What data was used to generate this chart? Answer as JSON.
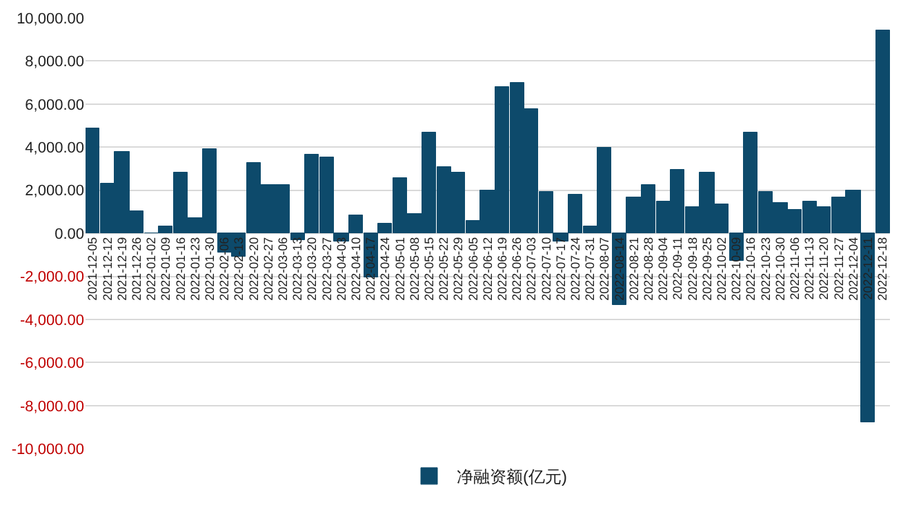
{
  "chart_data": {
    "type": "bar",
    "categories": [
      "2021-12-05",
      "2021-12-12",
      "2021-12-19",
      "2021-12-26",
      "2022-01-02",
      "2022-01-09",
      "2022-01-16",
      "2022-01-23",
      "2022-01-30",
      "2022-02-06",
      "2022-02-13",
      "2022-02-20",
      "2022-02-27",
      "2022-03-06",
      "2022-03-13",
      "2022-03-20",
      "2022-03-27",
      "2022-04-03",
      "2022-04-10",
      "2022-04-17",
      "2022-04-24",
      "2022-05-01",
      "2022-05-08",
      "2022-05-15",
      "2022-05-22",
      "2022-05-29",
      "2022-06-05",
      "2022-06-12",
      "2022-06-19",
      "2022-06-26",
      "2022-07-03",
      "2022-07-10",
      "2022-07-17",
      "2022-07-24",
      "2022-07-31",
      "2022-08-07",
      "2022-08-14",
      "2022-08-21",
      "2022-08-28",
      "2022-09-04",
      "2022-09-11",
      "2022-09-18",
      "2022-09-25",
      "2022-10-02",
      "2022-10-09",
      "2022-10-16",
      "2022-10-23",
      "2022-10-30",
      "2022-11-06",
      "2022-11-13",
      "2022-11-20",
      "2022-11-27",
      "2022-12-04",
      "2022-12-11",
      "2022-12-18"
    ],
    "series": [
      {
        "name": "净融资额(亿元)",
        "color": "#0d4a6b",
        "values": [
          4900,
          2300,
          3800,
          1000,
          0,
          300,
          2800,
          700,
          3900,
          -900,
          -1100,
          3300,
          2250,
          2250,
          -300,
          3650,
          3500,
          -350,
          850,
          -2050,
          450,
          2550,
          900,
          4650,
          3100,
          2850,
          550,
          2000,
          6800,
          7000,
          5750,
          1950,
          -350,
          1800,
          300,
          3950,
          -3350,
          1700,
          2250,
          1450,
          2950,
          1250,
          2800,
          1350,
          -1250,
          4650,
          1950,
          1400,
          1100,
          1450,
          1200,
          1650,
          2000,
          -8750,
          9400
        ]
      }
    ],
    "ylim": [
      -10000,
      10000
    ],
    "yticks": [
      {
        "value": -10000,
        "label": "-10,000.00"
      },
      {
        "value": -8000,
        "label": "-8,000.00"
      },
      {
        "value": -6000,
        "label": "-6,000.00"
      },
      {
        "value": -4000,
        "label": "-4,000.00"
      },
      {
        "value": -2000,
        "label": "-2,000.00"
      },
      {
        "value": 0,
        "label": "0.00"
      },
      {
        "value": 2000,
        "label": "2,000.00"
      },
      {
        "value": 4000,
        "label": "4,000.00"
      },
      {
        "value": 6000,
        "label": "6,000.00"
      },
      {
        "value": 8000,
        "label": "8,000.00"
      },
      {
        "value": 10000,
        "label": "10,000.00"
      }
    ],
    "grid": "y",
    "legend": "bottom"
  }
}
